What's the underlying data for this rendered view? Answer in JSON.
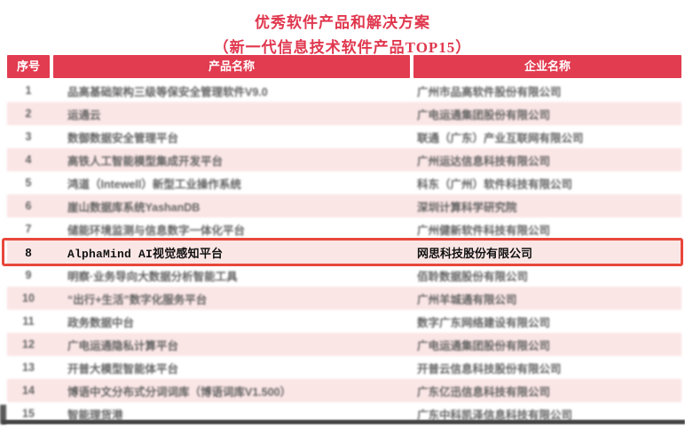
{
  "title": "优秀软件产品和解决方案",
  "subtitle": "（新一代信息技术软件产品TOP15）",
  "colors": {
    "title_red": "#e0374e",
    "header_red": "#e23c50",
    "row_pink": "#fbe6e6",
    "highlight_border_red": "#e8473c",
    "bottom_bar_gray": "#454545"
  },
  "table": {
    "headers": [
      "序号",
      "产品名称",
      "企业名称"
    ],
    "rows": [
      {
        "no": "1",
        "product": "品高基础架构三级等保安全管理软件V9.0",
        "company": "广州市品高软件股份有限公司",
        "highlight": false
      },
      {
        "no": "2",
        "product": "运通云",
        "company": "广电运通集团股份有限公司",
        "highlight": false
      },
      {
        "no": "3",
        "product": "数御数据安全管理平台",
        "company": "联通（广东）产业互联网有限公司",
        "highlight": false
      },
      {
        "no": "4",
        "product": "高铁人工智能模型集成开发平台",
        "company": "广州运达信息科技有限公司",
        "highlight": false
      },
      {
        "no": "5",
        "product": "鸿道（Intewell）新型工业操作系统",
        "company": "科东（广州）软件科技有限公司",
        "highlight": false
      },
      {
        "no": "6",
        "product": "崖山数据库系统YashanDB",
        "company": "深圳计算科学研究院",
        "highlight": false
      },
      {
        "no": "7",
        "product": "储能环境监测与信息数字一体化平台",
        "company": "广州健新软件科技有限公司",
        "highlight": false
      },
      {
        "no": "8",
        "product": "AlphaMind AI视觉感知平台",
        "company": "网思科技股份有限公司",
        "highlight": true
      },
      {
        "no": "9",
        "product": "明察·业务导向大数据分析智能工具",
        "company": "佰聆数据股份有限公司",
        "highlight": false
      },
      {
        "no": "10",
        "product": "“出行+生活”数字化服务平台",
        "company": "广州羊城通有限公司",
        "highlight": false
      },
      {
        "no": "11",
        "product": "政务数据中台",
        "company": "数字广东网络建设有限公司",
        "highlight": false
      },
      {
        "no": "12",
        "product": "广电运通隐私计算平台",
        "company": "广电运通集团股份有限公司",
        "highlight": false
      },
      {
        "no": "13",
        "product": "开普大模型智能体平台",
        "company": "开普云信息科技股份有限公司",
        "highlight": false
      },
      {
        "no": "14",
        "product": "博语中文分布式分词词库（博语词库V1.500）",
        "company": "广东亿迅信息科技有限公司",
        "highlight": false
      },
      {
        "no": "15",
        "product": "智能理货港",
        "company": "广东中科凯泽信息科技有限公司",
        "highlight": false
      }
    ]
  }
}
